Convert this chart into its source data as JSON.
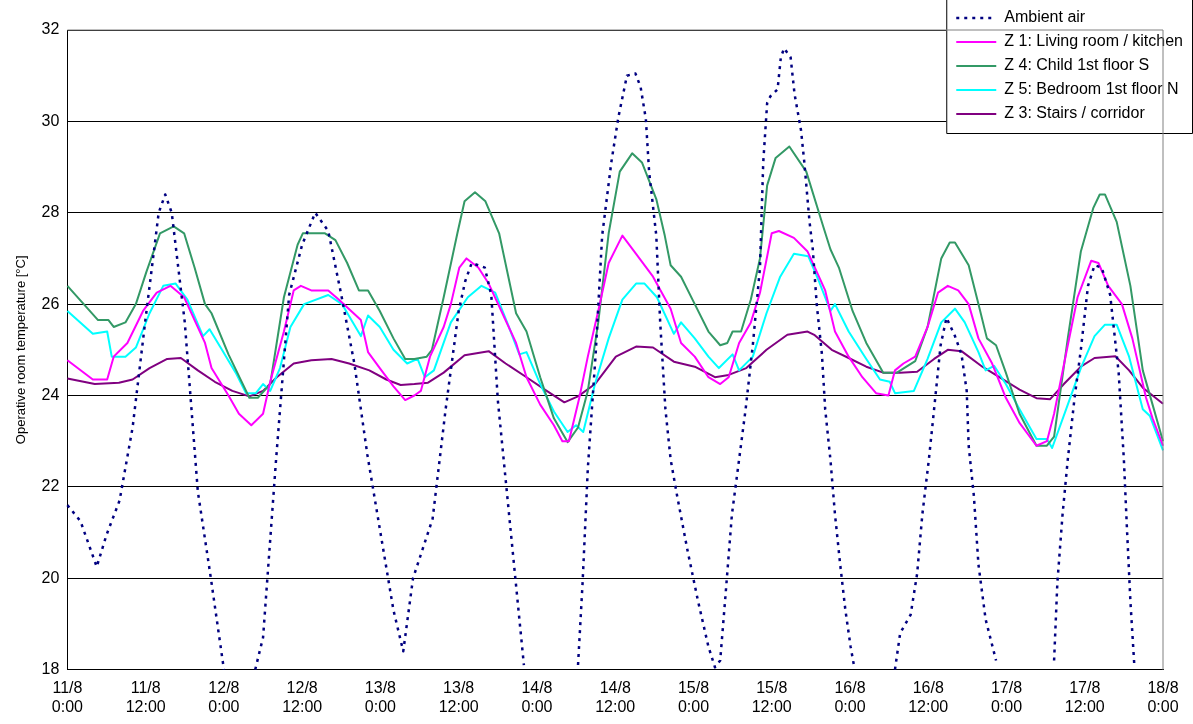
{
  "chart_data": {
    "type": "line",
    "ylabel": "Operative room temperature [°C]",
    "xlim": [
      "--08-11T00:00",
      "--08-18T00:00"
    ],
    "xticks": [
      {
        "value": "--08-11T00:00",
        "label": "11/8 0:00"
      },
      {
        "value": "--08-11T12:00",
        "label": "11/8 12:00"
      },
      {
        "value": "--08-12T00:00",
        "label": "12/8 0:00"
      },
      {
        "value": "--08-12T12:00",
        "label": "12/8 12:00"
      },
      {
        "value": "--08-13T00:00",
        "label": "13/8 0:00"
      },
      {
        "value": "--08-13T12:00",
        "label": "13/8 12:00"
      },
      {
        "value": "--08-14T00:00",
        "label": "14/8 0:00"
      },
      {
        "value": "--08-14T12:00",
        "label": "14/8 12:00"
      },
      {
        "value": "--08-15T00:00",
        "label": "15/8 0:00"
      },
      {
        "value": "--08-15T12:00",
        "label": "15/8 12:00"
      },
      {
        "value": "--08-16T00:00",
        "label": "16/8 0:00"
      },
      {
        "value": "--08-16T12:00",
        "label": "16/8 12:00"
      },
      {
        "value": "--08-17T00:00",
        "label": "17/8 0:00"
      },
      {
        "value": "--08-17T12:00",
        "label": "17/8 12:00"
      },
      {
        "value": "--08-18T00:00",
        "label": "18/8 0:00"
      }
    ],
    "ylim": [
      18,
      32
    ],
    "yticks": [
      18,
      20,
      22,
      24,
      26,
      28,
      30,
      32
    ],
    "grid": "y",
    "legend": "top right",
    "marker": "none",
    "series": [
      {
        "name": "Ambient air",
        "color": "#000080",
        "line_style": "dotted",
        "x": [
          "--08-11T00:00",
          "--08-11T02:00",
          "--08-11T04:30",
          "--08-11T06:00",
          "--08-11T08:00",
          "--08-11T10:00",
          "--08-11T12:00",
          "--08-11T14:00",
          "--08-11T15:00",
          "--08-11T16:00",
          "--08-11T18:00",
          "--08-11T20:00",
          "--08-11T22:00",
          "--08-12T00:00",
          "--08-12T02:00",
          "--08-12T04:48",
          "--08-12T06:00",
          "--08-12T08:00",
          "--08-12T10:00",
          "--08-12T12:00",
          "--08-12T14:00",
          "--08-12T16:00",
          "--08-12T18:00",
          "--08-12T20:00",
          "--08-12T22:00",
          "--08-13T00:00",
          "--08-13T02:00",
          "--08-13T03:30",
          "--08-13T05:00",
          "--08-13T08:00",
          "--08-13T10:00",
          "--08-13T12:00",
          "--08-13T13:00",
          "--08-13T14:00",
          "--08-13T16:00",
          "--08-13T17:00",
          "--08-13T18:00",
          "--08-13T20:00",
          "--08-13T22:00",
          "--08-14T02:00",
          "--08-14T06:18",
          "--08-14T07:00",
          "--08-14T07:48",
          "--08-14T09:00",
          "--08-14T10:00",
          "--08-14T11:24",
          "--08-14T12:30",
          "--08-14T13:48",
          "--08-14T15:06",
          "--08-14T15:54",
          "--08-14T16:42",
          "--08-14T17:12",
          "--08-14T18:18",
          "--08-14T18:54",
          "--08-14T19:42",
          "--08-14T20:30",
          "--08-14T21:30",
          "--08-14T23:06",
          "--08-15T00:42",
          "--08-15T02:18",
          "--08-15T03:18",
          "--08-15T04:06",
          "--08-15T04:54",
          "--08-15T05:54",
          "--08-15T07:00",
          "--08-15T08:00",
          "--08-15T09:06",
          "--08-15T10:12",
          "--08-15T10:42",
          "--08-15T11:18",
          "--08-15T11:48",
          "--08-15T12:54",
          "--08-15T13:24",
          "--08-15T13:54",
          "--08-15T14:54",
          "--08-15T15:30",
          "--08-15T16:30",
          "--08-15T17:00",
          "--08-15T17:48",
          "--08-15T18:18",
          "--08-15T18:54",
          "--08-15T19:42",
          "--08-15T20:12",
          "--08-15T21:00",
          "--08-15T21:42",
          "--08-15T22:30",
          "--08-15T23:18",
          "--08-16T00:06",
          "--08-16T00:36",
          "--08-16T04:00",
          "--08-16T06:54",
          "--08-16T07:42",
          "--08-16T09:18",
          "--08-16T10:18",
          "--08-16T11:06",
          "--08-16T12:06",
          "--08-16T12:54",
          "--08-16T13:54",
          "--08-16T14:48",
          "--08-16T16:06",
          "--08-16T17:06",
          "--08-16T17:54",
          "--08-16T18:12",
          "--08-16T19:00",
          "--08-16T19:42",
          "--08-16T20:48",
          "--08-16T22:24",
          "--08-17T03:00",
          "--08-17T07:18",
          "--08-17T07:48",
          "--08-17T08:36",
          "--08-17T09:24",
          "--08-17T10:24",
          "--08-17T11:24",
          "--08-17T12:30",
          "--08-17T13:30",
          "--08-17T14:36",
          "--08-17T15:54",
          "--08-17T17:12",
          "--08-17T18:00",
          "--08-17T18:30",
          "--08-17T19:00",
          "--08-17T19:36"
        ],
        "values": [
          21.6,
          21.25,
          20.25,
          20.95,
          21.7,
          23.3,
          25.7,
          28.0,
          28.4,
          28.0,
          25.6,
          21.9,
          20.0,
          18.0,
          null,
          18.0,
          18.7,
          22.6,
          26.2,
          27.3,
          28.0,
          27.6,
          26.2,
          24.7,
          22.7,
          21.0,
          19.3,
          18.4,
          20.0,
          21.3,
          23.7,
          25.85,
          26.5,
          26.9,
          26.8,
          26.2,
          23.9,
          21.0,
          18.1,
          null,
          18.1,
          19.9,
          22.4,
          24.9,
          27.5,
          29.1,
          30.1,
          31.0,
          31.05,
          30.75,
          30.05,
          28.9,
          27.5,
          25.6,
          23.7,
          22.6,
          21.8,
          20.6,
          19.5,
          18.5,
          18.05,
          18.2,
          19.6,
          21.4,
          22.6,
          23.7,
          25.1,
          26.8,
          29.1,
          30.4,
          30.55,
          30.7,
          31.4,
          31.6,
          31.4,
          30.6,
          29.8,
          29.1,
          27.8,
          27.2,
          26.0,
          24.9,
          23.7,
          22.6,
          21.4,
          20.3,
          19.3,
          18.5,
          18.1,
          null,
          18.0,
          18.8,
          19.2,
          20.1,
          21.4,
          22.6,
          23.7,
          25.1,
          25.7,
          25.3,
          24.9,
          24.1,
          22.9,
          21.8,
          20.3,
          19.1,
          18.2,
          null,
          18.2,
          19.9,
          21.4,
          22.6,
          23.9,
          25.0,
          26.4,
          26.85,
          26.8,
          26.2,
          24.5,
          22.6,
          21.0,
          19.5,
          18.1
        ]
      },
      {
        "name": "Z 1: Living room / kitchen",
        "color": "#ff00ff",
        "x": [
          "--08-11T00:00",
          "--08-11T03:54",
          "--08-11T06:06",
          "--08-11T07:06",
          "--08-11T09:12",
          "--08-11T11:36",
          "--08-11T13:42",
          "--08-11T15:48",
          "--08-11T17:54",
          "--08-11T21:06",
          "--08-11T22:06",
          "--08-12T00:42",
          "--08-12T02:18",
          "--08-12T04:12",
          "--08-12T06:00",
          "--08-12T07:06",
          "--08-12T09:12",
          "--08-12T10:42",
          "--08-12T11:48",
          "--08-12T13:24",
          "--08-12T16:00",
          "--08-12T17:36",
          "--08-12T21:00",
          "--08-12T22:06",
          "--08-12T23:54",
          "--08-13T02:00",
          "--08-13T03:48",
          "--08-13T05:12",
          "--08-13T06:12",
          "--08-13T07:36",
          "--08-13T09:42",
          "--08-13T10:48",
          "--08-13T12:06",
          "--08-13T13:12",
          "--08-13T15:00",
          "--08-13T16:36",
          "--08-13T18:42",
          "--08-13T20:48",
          "--08-13T22:24",
          "--08-14T00:30",
          "--08-14T02:36",
          "--08-14T03:54",
          "--08-14T04:54",
          "--08-14T06:30",
          "--08-14T07:48",
          "--08-14T09:24",
          "--08-14T11:00",
          "--08-14T13:06",
          "--08-14T15:12",
          "--08-14T17:48",
          "--08-14T20:30",
          "--08-14T22:06",
          "--08-15T00:12",
          "--08-15T02:18",
          "--08-15T04:06",
          "--08-15T05:24",
          "--08-15T07:00",
          "--08-15T08:48",
          "--08-15T10:12",
          "--08-15T12:00",
          "--08-15T13:06",
          "--08-15T15:24",
          "--08-15T17:30",
          "--08-15T20:12",
          "--08-15T21:42",
          "--08-15T23:48",
          "--08-16T01:54",
          "--08-16T04:00",
          "--08-16T05:54",
          "--08-16T06:54",
          "--08-16T08:12",
          "--08-16T10:00",
          "--08-16T11:54",
          "--08-16T13:30",
          "--08-16T15:00",
          "--08-16T16:36",
          "--08-16T18:12",
          "--08-16T19:42",
          "--08-16T21:48",
          "--08-16T23:54",
          "--08-17T02:00",
          "--08-17T04:36",
          "--08-17T06:12",
          "--08-17T07:18",
          "--08-17T09:24",
          "--08-17T10:54",
          "--08-17T13:00",
          "--08-17T14:06",
          "--08-17T15:36",
          "--08-17T17:42",
          "--08-17T19:18",
          "--08-17T21:24",
          "--08-17T22:24",
          "--08-18T00:00"
        ],
        "values": [
          24.77,
          24.35,
          24.35,
          24.85,
          25.15,
          25.85,
          26.25,
          26.4,
          26.15,
          25.15,
          24.6,
          24.0,
          23.6,
          23.35,
          23.6,
          24.3,
          25.4,
          26.3,
          26.4,
          26.3,
          26.3,
          26.1,
          25.65,
          24.95,
          24.6,
          24.2,
          23.9,
          24.0,
          24.1,
          24.85,
          25.5,
          26.0,
          26.8,
          27.0,
          26.8,
          26.45,
          25.8,
          25.15,
          24.4,
          23.8,
          23.35,
          23.0,
          23.0,
          23.95,
          24.85,
          25.85,
          26.9,
          27.5,
          27.1,
          26.6,
          25.9,
          25.15,
          24.85,
          24.4,
          24.25,
          24.4,
          25.15,
          25.6,
          26.25,
          27.55,
          27.6,
          27.45,
          27.15,
          26.3,
          25.4,
          24.85,
          24.4,
          24.05,
          24.0,
          24.55,
          24.7,
          24.85,
          25.5,
          26.25,
          26.4,
          26.3,
          26.0,
          25.25,
          24.7,
          23.95,
          23.4,
          22.9,
          23.0,
          23.6,
          25.1,
          26.15,
          26.95,
          26.9,
          26.4,
          26.0,
          25.25,
          23.95,
          23.5,
          22.9
        ]
      },
      {
        "name": "Z 4: Child 1st floor S",
        "color": "#339966",
        "x": [
          "--08-11T00:00",
          "--08-11T04:42",
          "--08-11T06:18",
          "--08-11T07:06",
          "--08-11T08:54",
          "--08-11T10:30",
          "--08-11T12:06",
          "--08-11T14:12",
          "--08-11T16:18",
          "--08-11T17:54",
          "--08-11T19:30",
          "--08-11T21:06",
          "--08-11T22:06",
          "--08-12T00:42",
          "--08-12T03:54",
          "--08-12T05:12",
          "--08-12T07:06",
          "--08-12T09:12",
          "--08-12T11:18",
          "--08-12T12:06",
          "--08-12T15:30",
          "--08-12T17:06",
          "--08-12T18:54",
          "--08-12T20:42",
          "--08-12T22:06",
          "--08-12T23:54",
          "--08-13T02:00",
          "--08-13T03:48",
          "--08-13T05:12",
          "--08-13T07:06",
          "--08-13T07:54",
          "--08-13T09:42",
          "--08-13T11:48",
          "--08-13T12:54",
          "--08-13T14:30",
          "--08-13T16:06",
          "--08-13T18:12",
          "--08-13T20:48",
          "--08-13T22:24",
          "--08-14T00:30",
          "--08-14T02:36",
          "--08-14T04:42",
          "--08-14T06:18",
          "--08-14T07:48",
          "--08-14T09:24",
          "--08-14T11:00",
          "--08-14T12:42",
          "--08-14T14:36",
          "--08-14T16:06",
          "--08-14T18:18",
          "--08-14T19:36",
          "--08-14T20:30",
          "--08-14T22:06",
          "--08-15T00:12",
          "--08-15T02:18",
          "--08-15T04:06",
          "--08-15T05:12",
          "--08-15T06:00",
          "--08-15T07:18",
          "--08-15T08:48",
          "--08-15T10:12",
          "--08-15T11:18",
          "--08-15T12:36",
          "--08-15T14:42",
          "--08-15T17:18",
          "--08-15T19:54",
          "--08-15T21:00",
          "--08-15T22:18",
          "--08-16T00:24",
          "--08-16T02:30",
          "--08-16T05:06",
          "--08-16T07:12",
          "--08-16T10:00",
          "--08-16T11:54",
          "--08-16T14:00",
          "--08-16T15:18",
          "--08-16T16:06",
          "--08-16T18:12",
          "--08-16T19:42",
          "--08-16T21:00",
          "--08-16T22:24",
          "--08-16T23:54",
          "--08-17T02:00",
          "--08-17T04:36",
          "--08-17T06:12",
          "--08-17T07:18",
          "--08-17T09:24",
          "--08-17T11:24",
          "--08-17T13:18",
          "--08-17T14:18",
          "--08-17T15:06",
          "--08-17T16:54",
          "--08-17T19:00",
          "--08-17T20:54",
          "--08-17T22:24",
          "--08-18T00:00"
        ],
        "values": [
          26.4,
          25.65,
          25.65,
          25.5,
          25.6,
          26.0,
          26.7,
          27.55,
          27.7,
          27.55,
          26.8,
          26.0,
          25.8,
          24.9,
          23.95,
          23.95,
          24.25,
          26.15,
          27.3,
          27.55,
          27.55,
          27.4,
          26.9,
          26.3,
          26.3,
          25.85,
          25.25,
          24.8,
          24.8,
          24.85,
          25.0,
          26.15,
          27.55,
          28.25,
          28.45,
          28.25,
          27.55,
          25.8,
          25.4,
          24.4,
          23.5,
          22.98,
          23.3,
          24.1,
          25.6,
          27.55,
          28.9,
          29.3,
          29.1,
          28.3,
          27.5,
          26.85,
          26.6,
          26.0,
          25.4,
          25.1,
          25.15,
          25.4,
          25.4,
          26.1,
          27.0,
          28.6,
          29.2,
          29.45,
          28.9,
          27.7,
          27.2,
          26.8,
          25.85,
          25.15,
          24.5,
          24.5,
          24.75,
          25.5,
          27.0,
          27.35,
          27.35,
          26.85,
          26.0,
          25.25,
          25.1,
          24.5,
          23.6,
          22.9,
          22.9,
          23.1,
          25.25,
          27.15,
          28.1,
          28.4,
          28.4,
          27.8,
          26.4,
          24.55,
          23.8,
          23.0
        ]
      },
      {
        "name": "Z 5: Bedroom 1st floor N",
        "color": "#00ffff",
        "x": [
          "--08-11T00:00",
          "--08-11T03:54",
          "--08-11T06:06",
          "--08-11T06:48",
          "--08-11T08:54",
          "--08-11T10:30",
          "--08-11T12:36",
          "--08-11T14:42",
          "--08-11T16:36",
          "--08-11T18:24",
          "--08-11T20:48",
          "--08-11T21:48",
          "--08-11T23:42",
          "--08-12T01:48",
          "--08-12T03:24",
          "--08-12T04:54",
          "--08-12T06:00",
          "--08-12T07:06",
          "--08-12T08:36",
          "--08-12T10:12",
          "--08-12T12:18",
          "--08-12T16:00",
          "--08-12T18:06",
          "--08-12T21:00",
          "--08-12T22:06",
          "--08-12T23:54",
          "--08-13T02:00",
          "--08-13T04:06",
          "--08-13T05:42",
          "--08-13T06:48",
          "--08-13T08:12",
          "--08-13T10:48",
          "--08-13T13:24",
          "--08-13T15:30",
          "--08-13T17:36",
          "--08-13T19:42",
          "--08-13T21:18",
          "--08-13T22:24",
          "--08-14T00:30",
          "--08-14T02:36",
          "--08-14T04:42",
          "--08-14T06:00",
          "--08-14T07:06",
          "--08-14T08:54",
          "--08-14T11:00",
          "--08-14T13:06",
          "--08-14T15:12",
          "--08-14T16:30",
          "--08-14T18:24",
          "--08-14T21:00",
          "--08-14T22:06",
          "--08-15T00:12",
          "--08-15T02:18",
          "--08-15T03:54",
          "--08-15T06:00",
          "--08-15T07:00",
          "--08-15T09:06",
          "--08-15T11:12",
          "--08-15T13:18",
          "--08-15T15:24",
          "--08-15T17:36",
          "--08-15T19:06",
          "--08-15T21:00",
          "--08-15T21:42",
          "--08-15T23:48",
          "--08-16T02:30",
          "--08-16T04:36",
          "--08-16T06:06",
          "--08-16T06:54",
          "--08-16T09:48",
          "--08-16T11:54",
          "--08-16T14:00",
          "--08-16T16:06",
          "--08-16T17:36",
          "--08-16T19:42",
          "--08-16T20:48",
          "--08-16T22:06",
          "--08-16T23:54",
          "--08-17T02:00",
          "--08-17T04:36",
          "--08-17T06:12",
          "--08-17T07:00",
          "--08-17T09:24",
          "--08-17T11:24",
          "--08-17T13:30",
          "--08-17T15:06",
          "--08-17T16:54",
          "--08-17T18:48",
          "--08-17T20:54",
          "--08-17T22:00",
          "--08-18T00:00"
        ],
        "values": [
          25.85,
          25.35,
          25.4,
          24.85,
          24.85,
          25.05,
          25.8,
          26.4,
          26.45,
          26.1,
          25.3,
          25.45,
          25.0,
          24.5,
          24.05,
          24.05,
          24.25,
          24.1,
          24.6,
          25.5,
          26.0,
          26.2,
          26.0,
          25.3,
          25.75,
          25.5,
          25.0,
          24.7,
          24.8,
          24.4,
          24.55,
          25.6,
          26.15,
          26.4,
          26.25,
          25.5,
          24.9,
          24.95,
          24.25,
          23.65,
          23.2,
          23.35,
          23.2,
          24.25,
          25.25,
          26.1,
          26.45,
          26.45,
          26.15,
          25.35,
          25.6,
          25.25,
          24.85,
          24.6,
          24.9,
          24.55,
          24.85,
          25.8,
          26.6,
          27.1,
          27.05,
          26.55,
          25.85,
          26.0,
          25.4,
          24.8,
          24.35,
          24.3,
          24.05,
          24.1,
          24.8,
          25.6,
          25.9,
          25.6,
          24.95,
          24.55,
          24.65,
          24.25,
          23.7,
          23.05,
          23.05,
          22.85,
          23.8,
          24.6,
          25.3,
          25.55,
          25.55,
          24.85,
          23.7,
          23.55,
          22.8
        ]
      },
      {
        "name": "Z 3: Stairs / corridor",
        "color": "#800080",
        "x": [
          "--08-11T00:00",
          "--08-11T04:12",
          "--08-11T07:54",
          "--08-11T10:00",
          "--08-11T12:36",
          "--08-11T15:18",
          "--08-11T17:24",
          "--08-11T20:00",
          "--08-11T22:36",
          "--08-12T01:18",
          "--08-12T03:54",
          "--08-12T06:00",
          "--08-12T08:06",
          "--08-12T10:42",
          "--08-12T13:24",
          "--08-12T16:30",
          "--08-12T19:12",
          "--08-12T22:18",
          "--08-13T00:54",
          "--08-13T03:06",
          "--08-13T05:12",
          "--08-13T07:18",
          "--08-13T09:42",
          "--08-13T12:54",
          "--08-13T16:36",
          "--08-13T19:12",
          "--08-13T22:24",
          "--08-14T01:30",
          "--08-14T04:12",
          "--08-14T06:18",
          "--08-14T08:54",
          "--08-14T12:06",
          "--08-14T15:12",
          "--08-14T17:48",
          "--08-14T21:00",
          "--08-15T00:12",
          "--08-15T03:18",
          "--08-15T05:24",
          "--08-15T08:06",
          "--08-15T11:12",
          "--08-15T14:24",
          "--08-15T17:30",
          "--08-15T18:36",
          "--08-15T21:12",
          "--08-15T23:48",
          "--08-16T02:30",
          "--08-16T05:06",
          "--08-16T07:42",
          "--08-16T10:18",
          "--08-16T12:54",
          "--08-16T15:00",
          "--08-16T17:06",
          "--08-16T20:18",
          "--08-16T23:24",
          "--08-17T02:00",
          "--08-17T04:36",
          "--08-17T06:42",
          "--08-17T08:48",
          "--08-17T11:24",
          "--08-17T13:30",
          "--08-17T16:42",
          "--08-17T18:48",
          "--08-17T20:54",
          "--08-17T22:24",
          "--08-18T00:00"
        ],
        "values": [
          24.37,
          24.25,
          24.28,
          24.35,
          24.6,
          24.8,
          24.82,
          24.55,
          24.3,
          24.1,
          23.98,
          24.1,
          24.4,
          24.7,
          24.77,
          24.8,
          24.7,
          24.55,
          24.35,
          24.23,
          24.25,
          24.28,
          24.5,
          24.88,
          24.97,
          24.7,
          24.4,
          24.1,
          23.85,
          23.98,
          24.25,
          24.85,
          25.07,
          25.05,
          24.74,
          24.63,
          24.4,
          24.45,
          24.6,
          25.0,
          25.33,
          25.4,
          25.32,
          25.0,
          24.82,
          24.63,
          24.5,
          24.5,
          24.52,
          24.8,
          25.0,
          24.97,
          24.63,
          24.36,
          24.13,
          23.94,
          23.92,
          24.25,
          24.63,
          24.82,
          24.86,
          24.55,
          24.17,
          24.0,
          23.82
        ]
      }
    ]
  }
}
